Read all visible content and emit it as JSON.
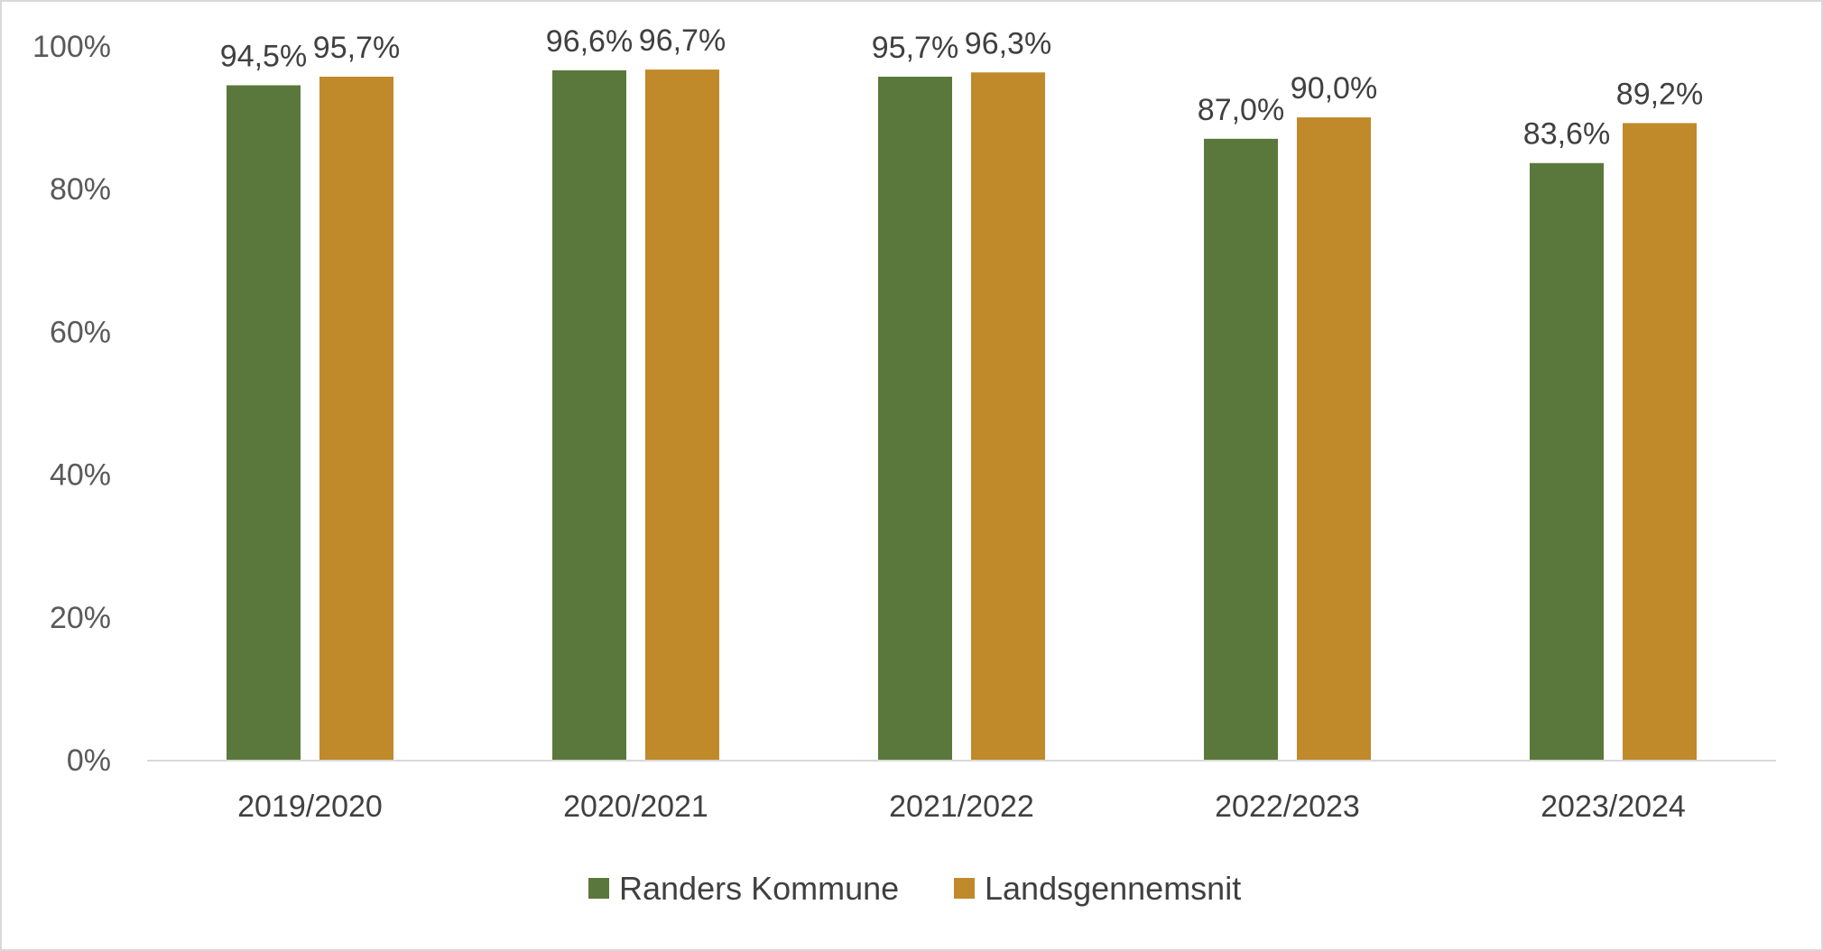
{
  "chart_data": {
    "type": "bar",
    "categories": [
      "2019/2020",
      "2020/2021",
      "2021/2022",
      "2022/2023",
      "2023/2024"
    ],
    "series": [
      {
        "name": "Randers Kommune",
        "color": "#5a783c",
        "values": [
          94.5,
          96.6,
          95.7,
          87.0,
          83.6
        ],
        "labels": [
          "94,5%",
          "96,6%",
          "95,7%",
          "87,0%",
          "83,6%"
        ]
      },
      {
        "name": "Landsgennemsnit",
        "color": "#c0892a",
        "values": [
          95.7,
          96.7,
          96.3,
          90.0,
          89.2
        ],
        "labels": [
          "95,7%",
          "96,7%",
          "96,3%",
          "90,0%",
          "89,2%"
        ]
      }
    ],
    "yticks": [
      "0%",
      "20%",
      "40%",
      "60%",
      "80%",
      "100%"
    ],
    "ylim": [
      0,
      100
    ],
    "title": "",
    "xlabel": "",
    "ylabel": "",
    "grid": false,
    "legend": "bottom"
  }
}
